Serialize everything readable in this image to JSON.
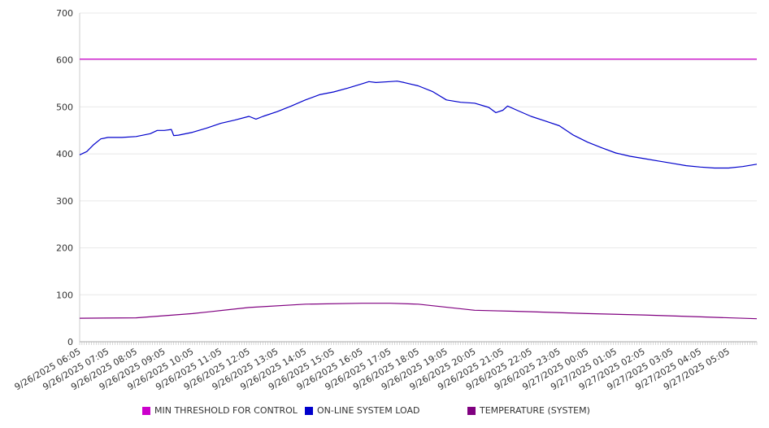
{
  "chart_data": {
    "type": "line",
    "ylim": [
      0,
      700
    ],
    "y_ticks": [
      0,
      100,
      200,
      300,
      400,
      500,
      600,
      700
    ],
    "grid": true,
    "legend_position": "bottom",
    "x_tick_labels": [
      "9/26/2025 06:05",
      "9/26/2025 07:05",
      "9/26/2025 08:05",
      "9/26/2025 09:05",
      "9/26/2025 10:05",
      "9/26/2025 11:05",
      "9/26/2025 12:05",
      "9/26/2025 13:05",
      "9/26/2025 14:05",
      "9/26/2025 15:05",
      "9/26/2025 16:05",
      "9/26/2025 17:05",
      "9/26/2025 18:05",
      "9/26/2025 19:05",
      "9/26/2025 20:05",
      "9/26/2025 21:05",
      "9/26/2025 22:05",
      "9/26/2025 23:05",
      "9/27/2025 00:05",
      "9/27/2025 01:05",
      "9/27/2025 02:05",
      "9/27/2025 03:05",
      "9/27/2025 04:05",
      "9/27/2025 05:05"
    ],
    "series": [
      {
        "name": "MIN THRESHOLD FOR CONTROL",
        "color": "#cc00cc",
        "points": [
          [
            "9/26/2025 06:05",
            602
          ],
          [
            "9/27/2025 06:05",
            602
          ]
        ]
      },
      {
        "name": "ON-LINE SYSTEM LOAD",
        "color": "#0000cc",
        "points": [
          [
            "9/26/2025 06:05",
            398
          ],
          [
            "9/26/2025 06:20",
            405
          ],
          [
            "9/26/2025 06:35",
            420
          ],
          [
            "9/26/2025 06:50",
            432
          ],
          [
            "9/26/2025 07:05",
            435
          ],
          [
            "9/26/2025 07:35",
            435
          ],
          [
            "9/26/2025 08:05",
            437
          ],
          [
            "9/26/2025 08:35",
            443
          ],
          [
            "9/26/2025 08:50",
            450
          ],
          [
            "9/26/2025 09:05",
            450
          ],
          [
            "9/26/2025 09:20",
            452
          ],
          [
            "9/26/2025 09:25",
            439
          ],
          [
            "9/26/2025 09:35",
            440
          ],
          [
            "9/26/2025 10:05",
            446
          ],
          [
            "9/26/2025 10:35",
            455
          ],
          [
            "9/26/2025 11:05",
            465
          ],
          [
            "9/26/2025 11:35",
            472
          ],
          [
            "9/26/2025 12:05",
            480
          ],
          [
            "9/26/2025 12:20",
            474
          ],
          [
            "9/26/2025 12:35",
            480
          ],
          [
            "9/26/2025 13:05",
            490
          ],
          [
            "9/26/2025 13:35",
            502
          ],
          [
            "9/26/2025 14:05",
            515
          ],
          [
            "9/26/2025 14:35",
            526
          ],
          [
            "9/26/2025 15:05",
            532
          ],
          [
            "9/26/2025 15:35",
            540
          ],
          [
            "9/26/2025 16:05",
            549
          ],
          [
            "9/26/2025 16:20",
            554
          ],
          [
            "9/26/2025 16:35",
            552
          ],
          [
            "9/26/2025 17:05",
            554
          ],
          [
            "9/26/2025 17:20",
            555
          ],
          [
            "9/26/2025 17:35",
            552
          ],
          [
            "9/26/2025 18:05",
            545
          ],
          [
            "9/26/2025 18:35",
            533
          ],
          [
            "9/26/2025 19:05",
            515
          ],
          [
            "9/26/2025 19:35",
            510
          ],
          [
            "9/26/2025 20:05",
            508
          ],
          [
            "9/26/2025 20:35",
            499
          ],
          [
            "9/26/2025 20:50",
            488
          ],
          [
            "9/26/2025 21:05",
            493
          ],
          [
            "9/26/2025 21:15",
            502
          ],
          [
            "9/26/2025 21:35",
            493
          ],
          [
            "9/26/2025 22:05",
            480
          ],
          [
            "9/26/2025 22:35",
            470
          ],
          [
            "9/26/2025 23:05",
            460
          ],
          [
            "9/26/2025 23:35",
            440
          ],
          [
            "9/27/2025 00:05",
            425
          ],
          [
            "9/27/2025 00:35",
            413
          ],
          [
            "9/27/2025 01:05",
            402
          ],
          [
            "9/27/2025 01:35",
            395
          ],
          [
            "9/27/2025 02:05",
            390
          ],
          [
            "9/27/2025 02:35",
            385
          ],
          [
            "9/27/2025 03:05",
            380
          ],
          [
            "9/27/2025 03:35",
            375
          ],
          [
            "9/27/2025 04:05",
            372
          ],
          [
            "9/27/2025 04:35",
            370
          ],
          [
            "9/27/2025 05:05",
            370
          ],
          [
            "9/27/2025 05:35",
            373
          ],
          [
            "9/27/2025 06:05",
            378
          ]
        ]
      },
      {
        "name": "TEMPERATURE (SYSTEM)",
        "color": "#800080",
        "points": [
          [
            "9/26/2025 06:05",
            50
          ],
          [
            "9/26/2025 08:05",
            51
          ],
          [
            "9/26/2025 10:05",
            60
          ],
          [
            "9/26/2025 12:05",
            73
          ],
          [
            "9/26/2025 14:05",
            80
          ],
          [
            "9/26/2025 16:05",
            82
          ],
          [
            "9/26/2025 17:05",
            82
          ],
          [
            "9/26/2025 18:05",
            80
          ],
          [
            "9/26/2025 20:05",
            67
          ],
          [
            "9/26/2025 22:05",
            64
          ],
          [
            "9/27/2025 00:05",
            60
          ],
          [
            "9/27/2025 02:05",
            57
          ],
          [
            "9/27/2025 04:05",
            53
          ],
          [
            "9/27/2025 06:05",
            49
          ]
        ]
      }
    ]
  }
}
